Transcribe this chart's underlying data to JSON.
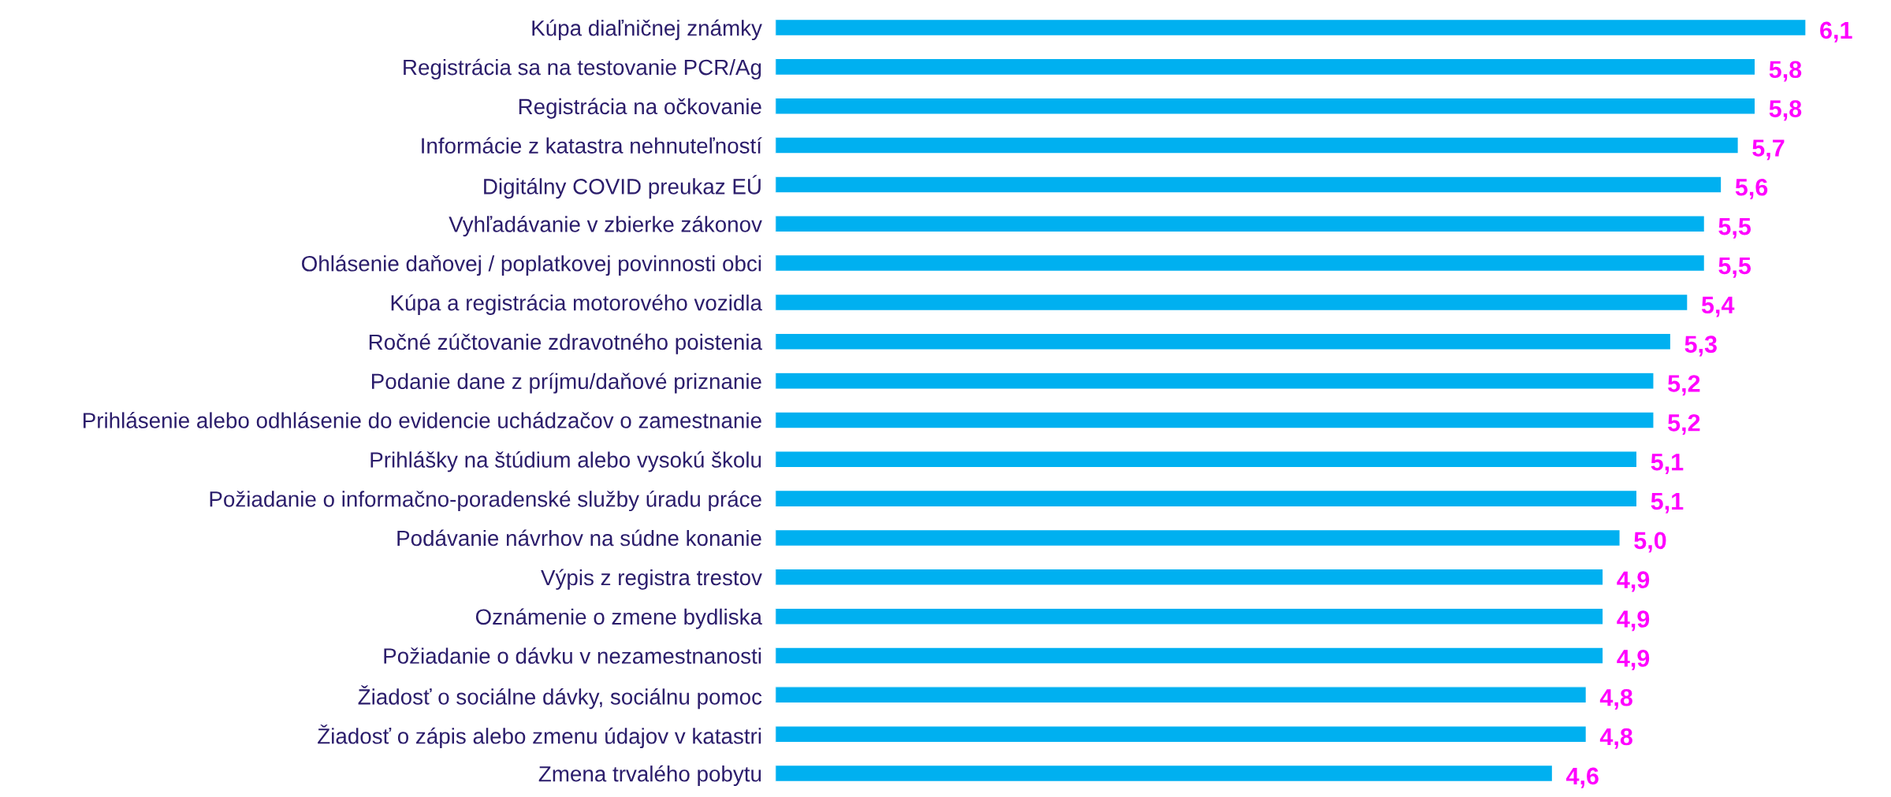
{
  "chart_data": {
    "type": "bar",
    "orientation": "horizontal",
    "tick_labels": "y",
    "grid": false,
    "legend": false,
    "categories": [
      "Kúpa diaľničnej známky",
      "Registrácia sa na testovanie PCR/Ag",
      "Registrácia na očkovanie",
      "Informácie z katastra nehnuteľností",
      "Digitálny COVID preukaz EÚ",
      "Vyhľadávanie v zbierke zákonov",
      "Ohlásenie daňovej / poplatkovej povinnosti obci",
      "Kúpa a registrácia motorového vozidla",
      "Ročné zúčtovanie zdravotného poistenia",
      "Podanie dane z príjmu/daňové priznanie",
      "Prihlásenie alebo odhlásenie do evidencie uchádzačov o zamestnanie",
      "Prihlášky na štúdium alebo vysokú školu",
      "Požiadanie o informačno-poradenské služby úradu práce",
      "Podávanie návrhov na súdne konanie",
      "Výpis z registra trestov",
      "Oznámenie o zmene bydliska",
      "Požiadanie o dávku v nezamestnanosti",
      "Žiadosť o sociálne dávky, sociálnu pomoc",
      "Žiadosť o zápis alebo zmenu údajov v katastri",
      "Zmena trvalého pobytu"
    ],
    "series": [
      {
        "color": "#00b0f0",
        "values": [
          6.1,
          5.8,
          5.8,
          5.7,
          5.6,
          5.5,
          5.5,
          5.4,
          5.3,
          5.2,
          5.2,
          5.1,
          5.1,
          5.0,
          4.9,
          4.9,
          4.9,
          4.8,
          4.8,
          4.6
        ],
        "value_labels": [
          "6,1",
          "5,8",
          "5,8",
          "5,7",
          "5,6",
          "5,5",
          "5,5",
          "5,4",
          "5,3",
          "5,2",
          "5,2",
          "5,1",
          "5,1",
          "5,0",
          "4,9",
          "4,9",
          "4,9",
          "4,8",
          "4,8",
          "4,6"
        ]
      }
    ]
  }
}
